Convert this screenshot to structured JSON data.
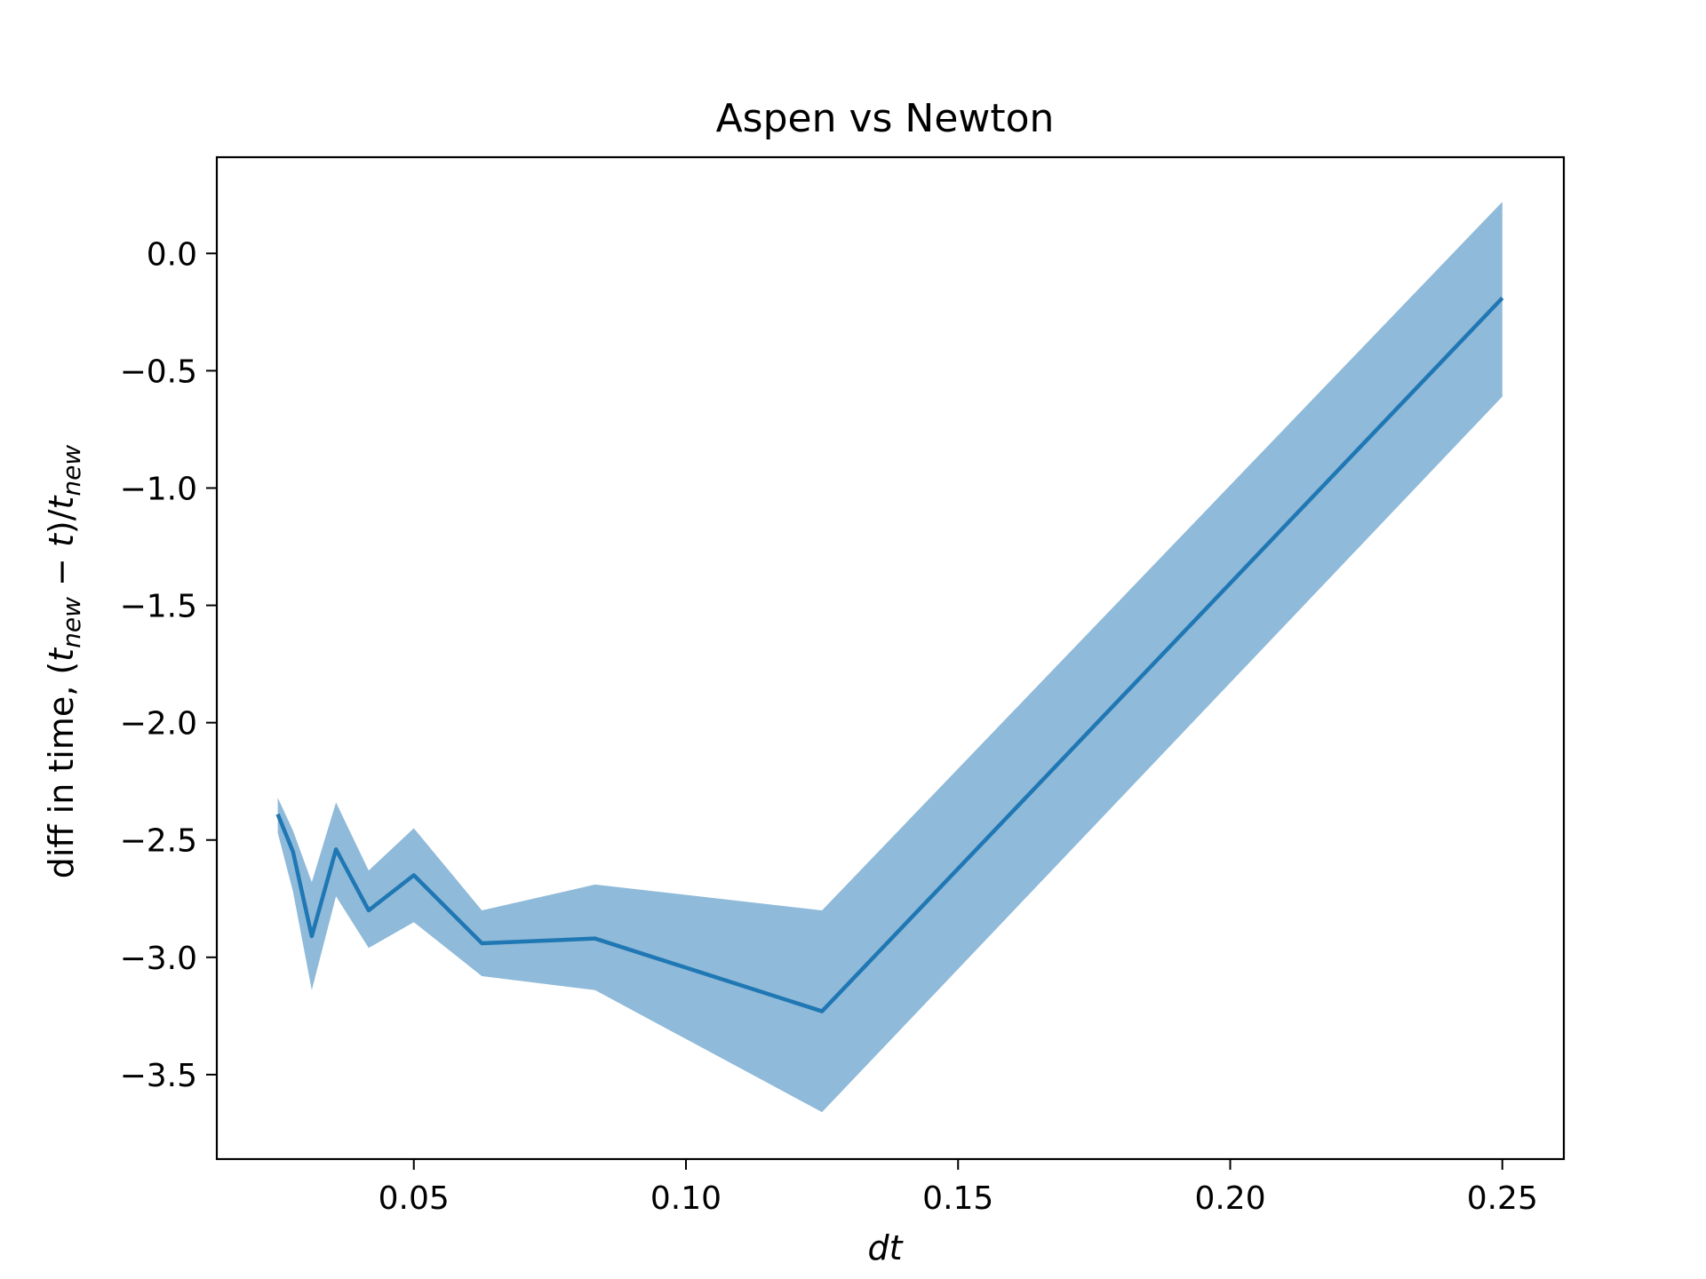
{
  "chart_data": {
    "type": "line",
    "title": "Aspen vs Newton",
    "xlabel": "dt",
    "ylabel": {
      "prefix": "diff in time, (",
      "t1": "t",
      "sub1": "new",
      "mid": " − ",
      "t2": "t",
      "close": ")/",
      "t3": "t",
      "sub3": "new"
    },
    "x_ticks": [
      0.05,
      0.1,
      0.15,
      0.2,
      0.25
    ],
    "x_tick_labels": [
      "0.05",
      "0.10",
      "0.15",
      "0.20",
      "0.25"
    ],
    "y_ticks": [
      0.0,
      -0.5,
      -1.0,
      -1.5,
      -2.0,
      -2.5,
      -3.0,
      -3.5
    ],
    "y_tick_labels": [
      "0.0",
      "−0.5",
      "−1.0",
      "−1.5",
      "−2.0",
      "−2.5",
      "−3.0",
      "−3.5"
    ],
    "xlim": [
      0.0138,
      0.2613
    ],
    "ylim": [
      -3.86,
      0.41
    ],
    "grid": false,
    "series": [
      {
        "color": "#1f77b4",
        "x": [
          0.025,
          0.0278,
          0.03125,
          0.0357,
          0.0417,
          0.05,
          0.0625,
          0.0833,
          0.125,
          0.25
        ],
        "y": [
          -2.39,
          -2.55,
          -2.91,
          -2.54,
          -2.8,
          -2.65,
          -2.94,
          -2.92,
          -3.23,
          -0.19
        ],
        "lower": [
          -2.47,
          -2.72,
          -3.14,
          -2.74,
          -2.96,
          -2.85,
          -3.08,
          -3.14,
          -3.66,
          -0.61
        ],
        "upper": [
          -2.32,
          -2.46,
          -2.68,
          -2.34,
          -2.63,
          -2.45,
          -2.8,
          -2.69,
          -2.8,
          0.22
        ],
        "band_color": "#8fbad9"
      }
    ]
  }
}
